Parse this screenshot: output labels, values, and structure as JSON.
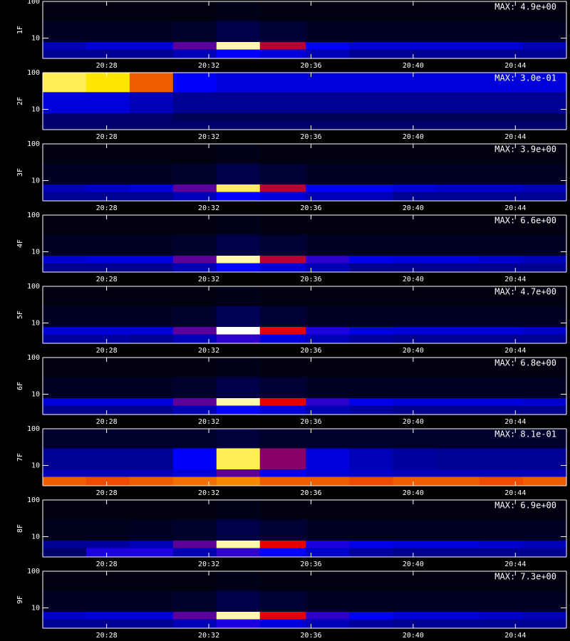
{
  "chart_data": [
    {
      "type": "heatmap",
      "ylabel": "1F",
      "annotation": "MAX: 4.9e+00",
      "log_y": true,
      "x_bins": [
        1225.5,
        1227.2,
        1228.9,
        1230.6,
        1232.3,
        1234,
        1235.8,
        1237.5,
        1239.2,
        1240.9,
        1242.6,
        1244.3,
        1246
      ],
      "y_bins": [
        2.8,
        5,
        8,
        30,
        100
      ],
      "z": [
        [
          0.2,
          0.2,
          0.2,
          0.25,
          0.35,
          0.3,
          0.25,
          0.2,
          0.2,
          0.2,
          0.2,
          0.2
        ],
        [
          0.25,
          0.3,
          0.3,
          0.45,
          0.95,
          0.55,
          0.35,
          0.3,
          0.3,
          0.3,
          0.3,
          0.25
        ],
        [
          0.05,
          0.05,
          0.05,
          0.06,
          0.1,
          0.07,
          0.05,
          0.05,
          0.05,
          0.05,
          0.05,
          0.05
        ],
        [
          0.02,
          0.02,
          0.02,
          0.02,
          0.03,
          0.02,
          0.02,
          0.02,
          0.02,
          0.02,
          0.02,
          0.02
        ]
      ],
      "xlim": [
        1225.5,
        1246
      ],
      "xticks": [
        {
          "value": 1228,
          "label": "20:28"
        },
        {
          "value": 1232,
          "label": "20:32"
        },
        {
          "value": 1236,
          "label": "20:36"
        },
        {
          "value": 1240,
          "label": "20:40"
        },
        {
          "value": 1244,
          "label": "20:44"
        }
      ],
      "ylim": [
        2.8,
        100
      ],
      "yticks": [
        10,
        100
      ]
    },
    {
      "type": "heatmap",
      "ylabel": "2F",
      "annotation": "MAX: 3.0e-01",
      "log_y": true,
      "x_bins": [
        1225.5,
        1227.2,
        1228.9,
        1230.6,
        1232.3,
        1234,
        1235.8,
        1237.5,
        1239.2,
        1240.9,
        1242.6,
        1244.3,
        1246
      ],
      "y_bins": [
        2.8,
        5,
        8,
        30,
        100
      ],
      "z": [
        [
          0.15,
          0.15,
          0.15,
          0.15,
          0.15,
          0.15,
          0.15,
          0.15,
          0.15,
          0.15,
          0.15,
          0.15
        ],
        [
          0.15,
          0.15,
          0.15,
          0.12,
          0.12,
          0.12,
          0.12,
          0.12,
          0.12,
          0.12,
          0.12,
          0.12
        ],
        [
          0.3,
          0.3,
          0.25,
          0.2,
          0.2,
          0.2,
          0.2,
          0.2,
          0.2,
          0.2,
          0.2,
          0.2
        ],
        [
          0.9,
          0.85,
          0.7,
          0.35,
          0.3,
          0.3,
          0.3,
          0.3,
          0.3,
          0.3,
          0.3,
          0.3
        ]
      ],
      "xlim": [
        1225.5,
        1246
      ],
      "xticks": [
        {
          "value": 1228,
          "label": "20:28"
        },
        {
          "value": 1232,
          "label": "20:32"
        },
        {
          "value": 1236,
          "label": "20:36"
        },
        {
          "value": 1240,
          "label": "20:40"
        },
        {
          "value": 1244,
          "label": "20:44"
        }
      ],
      "ylim": [
        2.8,
        100
      ],
      "yticks": [
        10,
        100
      ]
    },
    {
      "type": "heatmap",
      "ylabel": "3F",
      "annotation": "MAX: 3.9e+00",
      "log_y": true,
      "x_bins": [
        1225.5,
        1227.2,
        1228.9,
        1230.6,
        1232.3,
        1234,
        1235.8,
        1237.5,
        1239.2,
        1240.9,
        1242.6,
        1244.3,
        1246
      ],
      "y_bins": [
        2.8,
        5,
        8,
        30,
        100
      ],
      "z": [
        [
          0.2,
          0.2,
          0.2,
          0.25,
          0.35,
          0.3,
          0.25,
          0.25,
          0.2,
          0.2,
          0.2,
          0.2
        ],
        [
          0.25,
          0.28,
          0.3,
          0.45,
          0.9,
          0.55,
          0.35,
          0.35,
          0.3,
          0.28,
          0.28,
          0.25
        ],
        [
          0.05,
          0.05,
          0.05,
          0.06,
          0.1,
          0.07,
          0.05,
          0.05,
          0.05,
          0.05,
          0.05,
          0.05
        ],
        [
          0.02,
          0.02,
          0.02,
          0.02,
          0.03,
          0.02,
          0.02,
          0.02,
          0.02,
          0.02,
          0.02,
          0.02
        ]
      ],
      "xlim": [
        1225.5,
        1246
      ],
      "xticks": [
        {
          "value": 1228,
          "label": "20:28"
        },
        {
          "value": 1232,
          "label": "20:32"
        },
        {
          "value": 1236,
          "label": "20:36"
        },
        {
          "value": 1240,
          "label": "20:40"
        },
        {
          "value": 1244,
          "label": "20:44"
        }
      ],
      "ylim": [
        2.8,
        100
      ],
      "yticks": [
        10,
        100
      ]
    },
    {
      "type": "heatmap",
      "ylabel": "4F",
      "annotation": "MAX: 6.6e+00",
      "log_y": true,
      "x_bins": [
        1225.5,
        1227.2,
        1228.9,
        1230.6,
        1232.3,
        1234,
        1235.8,
        1237.5,
        1239.2,
        1240.9,
        1242.6,
        1244.3,
        1246
      ],
      "y_bins": [
        2.8,
        5,
        8,
        30,
        100
      ],
      "z": [
        [
          0.2,
          0.2,
          0.2,
          0.25,
          0.35,
          0.3,
          0.25,
          0.2,
          0.2,
          0.2,
          0.2,
          0.2
        ],
        [
          0.28,
          0.3,
          0.3,
          0.45,
          0.95,
          0.55,
          0.4,
          0.32,
          0.3,
          0.3,
          0.28,
          0.25
        ],
        [
          0.05,
          0.05,
          0.05,
          0.06,
          0.1,
          0.07,
          0.05,
          0.05,
          0.05,
          0.05,
          0.05,
          0.05
        ],
        [
          0.02,
          0.02,
          0.02,
          0.02,
          0.03,
          0.02,
          0.02,
          0.02,
          0.02,
          0.02,
          0.02,
          0.02
        ]
      ],
      "xlim": [
        1225.5,
        1246
      ],
      "xticks": [
        {
          "value": 1228,
          "label": "20:28"
        },
        {
          "value": 1232,
          "label": "20:32"
        },
        {
          "value": 1236,
          "label": "20:36"
        },
        {
          "value": 1240,
          "label": "20:40"
        },
        {
          "value": 1244,
          "label": "20:44"
        }
      ],
      "ylim": [
        2.8,
        100
      ],
      "yticks": [
        10,
        100
      ]
    },
    {
      "type": "heatmap",
      "ylabel": "5F",
      "annotation": "MAX: 4.7e+00",
      "log_y": true,
      "x_bins": [
        1225.5,
        1227.2,
        1228.9,
        1230.6,
        1232.3,
        1234,
        1235.8,
        1237.5,
        1239.2,
        1240.9,
        1242.6,
        1244.3,
        1246
      ],
      "y_bins": [
        2.8,
        5,
        8,
        30,
        100
      ],
      "z": [
        [
          0.22,
          0.22,
          0.2,
          0.25,
          0.4,
          0.3,
          0.25,
          0.22,
          0.2,
          0.2,
          0.2,
          0.2
        ],
        [
          0.3,
          0.3,
          0.3,
          0.45,
          1,
          0.6,
          0.38,
          0.32,
          0.3,
          0.3,
          0.3,
          0.28
        ],
        [
          0.05,
          0.05,
          0.05,
          0.06,
          0.12,
          0.07,
          0.05,
          0.05,
          0.05,
          0.05,
          0.05,
          0.05
        ],
        [
          0.02,
          0.02,
          0.02,
          0.02,
          0.03,
          0.02,
          0.02,
          0.02,
          0.02,
          0.02,
          0.02,
          0.02
        ]
      ],
      "xlim": [
        1225.5,
        1246
      ],
      "xticks": [
        {
          "value": 1228,
          "label": "20:28"
        },
        {
          "value": 1232,
          "label": "20:32"
        },
        {
          "value": 1236,
          "label": "20:36"
        },
        {
          "value": 1240,
          "label": "20:40"
        },
        {
          "value": 1244,
          "label": "20:44"
        }
      ],
      "ylim": [
        2.8,
        100
      ],
      "yticks": [
        10,
        100
      ]
    },
    {
      "type": "heatmap",
      "ylabel": "6F",
      "annotation": "MAX: 6.8e+00",
      "log_y": true,
      "x_bins": [
        1225.5,
        1227.2,
        1228.9,
        1230.6,
        1232.3,
        1234,
        1235.8,
        1237.5,
        1239.2,
        1240.9,
        1242.6,
        1244.3,
        1246
      ],
      "y_bins": [
        2.8,
        5,
        8,
        30,
        100
      ],
      "z": [
        [
          0.2,
          0.2,
          0.2,
          0.25,
          0.35,
          0.3,
          0.25,
          0.22,
          0.2,
          0.2,
          0.2,
          0.2
        ],
        [
          0.3,
          0.3,
          0.3,
          0.45,
          0.95,
          0.6,
          0.4,
          0.32,
          0.3,
          0.3,
          0.3,
          0.28
        ],
        [
          0.05,
          0.05,
          0.05,
          0.06,
          0.1,
          0.07,
          0.05,
          0.05,
          0.05,
          0.05,
          0.05,
          0.05
        ],
        [
          0.02,
          0.02,
          0.02,
          0.02,
          0.03,
          0.02,
          0.02,
          0.02,
          0.02,
          0.02,
          0.02,
          0.02
        ]
      ],
      "xlim": [
        1225.5,
        1246
      ],
      "xticks": [
        {
          "value": 1228,
          "label": "20:28"
        },
        {
          "value": 1232,
          "label": "20:32"
        },
        {
          "value": 1236,
          "label": "20:36"
        },
        {
          "value": 1240,
          "label": "20:40"
        },
        {
          "value": 1244,
          "label": "20:44"
        }
      ],
      "ylim": [
        2.8,
        100
      ],
      "yticks": [
        10,
        100
      ]
    },
    {
      "type": "heatmap",
      "ylabel": "7F",
      "annotation": "MAX: 8.1e-01",
      "log_y": true,
      "x_bins": [
        1225.5,
        1227.2,
        1228.9,
        1230.6,
        1232.3,
        1234,
        1235.8,
        1237.5,
        1239.2,
        1240.9,
        1242.6,
        1244.3,
        1246
      ],
      "y_bins": [
        2.8,
        5,
        8,
        30,
        100
      ],
      "z": [
        [
          0.7,
          0.68,
          0.7,
          0.72,
          0.75,
          0.7,
          0.7,
          0.68,
          0.7,
          0.7,
          0.68,
          0.7
        ],
        [
          0.25,
          0.25,
          0.25,
          0.3,
          0.45,
          0.35,
          0.3,
          0.28,
          0.25,
          0.25,
          0.25,
          0.25
        ],
        [
          0.2,
          0.2,
          0.2,
          0.35,
          0.9,
          0.5,
          0.3,
          0.25,
          0.22,
          0.2,
          0.2,
          0.2
        ],
        [
          0.06,
          0.06,
          0.06,
          0.06,
          0.08,
          0.06,
          0.06,
          0.06,
          0.06,
          0.06,
          0.06,
          0.06
        ]
      ],
      "xlim": [
        1225.5,
        1246
      ],
      "xticks": [
        {
          "value": 1228,
          "label": "20:28"
        },
        {
          "value": 1232,
          "label": "20:32"
        },
        {
          "value": 1236,
          "label": "20:36"
        },
        {
          "value": 1240,
          "label": "20:40"
        },
        {
          "value": 1244,
          "label": "20:44"
        }
      ],
      "ylim": [
        2.8,
        100
      ],
      "yticks": [
        10,
        100
      ]
    },
    {
      "type": "heatmap",
      "ylabel": "8F",
      "annotation": "MAX: 6.9e+00",
      "log_y": true,
      "x_bins": [
        1225.5,
        1227.2,
        1228.9,
        1230.6,
        1232.3,
        1234,
        1235.8,
        1237.5,
        1239.2,
        1240.9,
        1242.6,
        1244.3,
        1246
      ],
      "y_bins": [
        2.8,
        5,
        8,
        30,
        100
      ],
      "z": [
        [
          0.15,
          0.38,
          0.38,
          0.25,
          0.4,
          0.35,
          0.28,
          0.22,
          0.2,
          0.2,
          0.2,
          0.2
        ],
        [
          0.2,
          0.22,
          0.25,
          0.45,
          0.95,
          0.6,
          0.38,
          0.32,
          0.3,
          0.3,
          0.28,
          0.25
        ],
        [
          0.04,
          0.04,
          0.05,
          0.06,
          0.1,
          0.07,
          0.05,
          0.05,
          0.05,
          0.05,
          0.05,
          0.05
        ],
        [
          0.02,
          0.02,
          0.02,
          0.02,
          0.03,
          0.02,
          0.02,
          0.02,
          0.02,
          0.02,
          0.02,
          0.02
        ]
      ],
      "xlim": [
        1225.5,
        1246
      ],
      "xticks": [
        {
          "value": 1228,
          "label": "20:28"
        },
        {
          "value": 1232,
          "label": "20:32"
        },
        {
          "value": 1236,
          "label": "20:36"
        },
        {
          "value": 1240,
          "label": "20:40"
        },
        {
          "value": 1244,
          "label": "20:44"
        }
      ],
      "ylim": [
        2.8,
        100
      ],
      "yticks": [
        10,
        100
      ]
    },
    {
      "type": "heatmap",
      "ylabel": "9F",
      "annotation": "MAX: 7.3e+00",
      "log_y": true,
      "x_bins": [
        1225.5,
        1227.2,
        1228.9,
        1230.6,
        1232.3,
        1234,
        1235.8,
        1237.5,
        1239.2,
        1240.9,
        1242.6,
        1244.3,
        1246
      ],
      "y_bins": [
        2.8,
        5,
        8,
        30,
        100
      ],
      "z": [
        [
          0.2,
          0.2,
          0.2,
          0.25,
          0.38,
          0.3,
          0.25,
          0.22,
          0.2,
          0.2,
          0.2,
          0.2
        ],
        [
          0.28,
          0.3,
          0.3,
          0.45,
          0.95,
          0.6,
          0.4,
          0.35,
          0.3,
          0.3,
          0.28,
          0.25
        ],
        [
          0.05,
          0.05,
          0.05,
          0.06,
          0.1,
          0.07,
          0.05,
          0.05,
          0.05,
          0.05,
          0.05,
          0.05
        ],
        [
          0.02,
          0.02,
          0.02,
          0.02,
          0.03,
          0.02,
          0.02,
          0.02,
          0.02,
          0.02,
          0.02,
          0.02
        ]
      ],
      "xlim": [
        1225.5,
        1246
      ],
      "xticks": [
        {
          "value": 1228,
          "label": "20:28"
        },
        {
          "value": 1232,
          "label": "20:32"
        },
        {
          "value": 1236,
          "label": "20:36"
        },
        {
          "value": 1240,
          "label": "20:40"
        },
        {
          "value": 1244,
          "label": "20:44"
        }
      ],
      "ylim": [
        2.8,
        100
      ],
      "yticks": [
        10,
        100
      ]
    }
  ]
}
